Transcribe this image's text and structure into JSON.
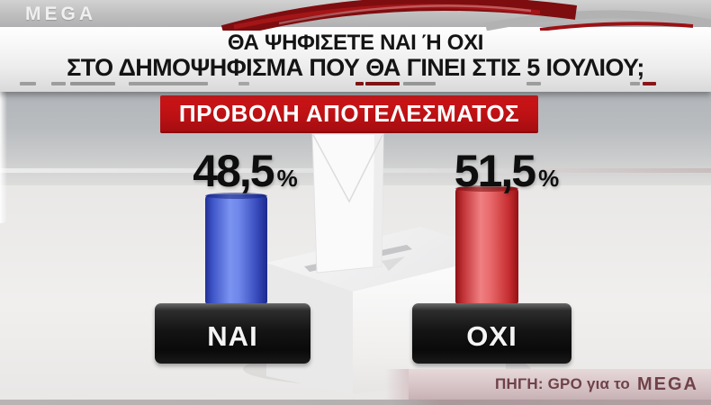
{
  "channel": {
    "logo_text": "MEGA"
  },
  "header": {
    "title_line1": "ΘΑ ΨΗΦΙΣΕΤΕ ΝΑΙ Ή ΟΧΙ",
    "title_line2": "ΣΤΟ ΔΗΜΟΨΗΦΙΣΜΑ ΠΟΥ ΘΑ ΓΙΝΕΙ ΣΤΙΣ 5 ΙΟΥΛΙΟΥ;"
  },
  "banner": {
    "label": "ΠΡΟΒΟΛΗ ΑΠΟΤΕΛΕΣΜΑΤΟΣ"
  },
  "results": [
    {
      "label": "ΝΑΙ",
      "value": "48,5",
      "sign": "%"
    },
    {
      "label": "ΟΧΙ",
      "value": "51,5",
      "sign": "%"
    }
  ],
  "source": {
    "prefix": "ΠΗΓΗ: GPO για το",
    "logo_text": "MEGA"
  },
  "colors": {
    "banner_red": "#bd1114",
    "bar_blue": "#3f57cf",
    "bar_red": "#d94548",
    "pedestal_black": "#141414",
    "source_text": "#6f4248"
  },
  "chart_data": {
    "type": "bar",
    "title": "ΘΑ ΨΗΦΙΣΕΤΕ ΝΑΙ Ή ΟΧΙ ΣΤΟ ΔΗΜΟΨΗΦΙΣΜΑ ΠΟΥ ΘΑ ΓΙΝΕΙ ΣΤΙΣ 5 ΙΟΥΛΙΟΥ;",
    "subtitle": "ΠΡΟΒΟΛΗ ΑΠΟΤΕΛΕΣΜΑΤΟΣ",
    "categories": [
      "ΝΑΙ",
      "ΟΧΙ"
    ],
    "values": [
      48.5,
      51.5
    ],
    "value_labels": [
      "48,5%",
      "51,5%"
    ],
    "series_colors": [
      "#3f57cf",
      "#d94548"
    ],
    "ylim": [
      0,
      100
    ],
    "grid": false,
    "legend": false,
    "source": "ΠΗΓΗ: GPO για το MEGA"
  }
}
